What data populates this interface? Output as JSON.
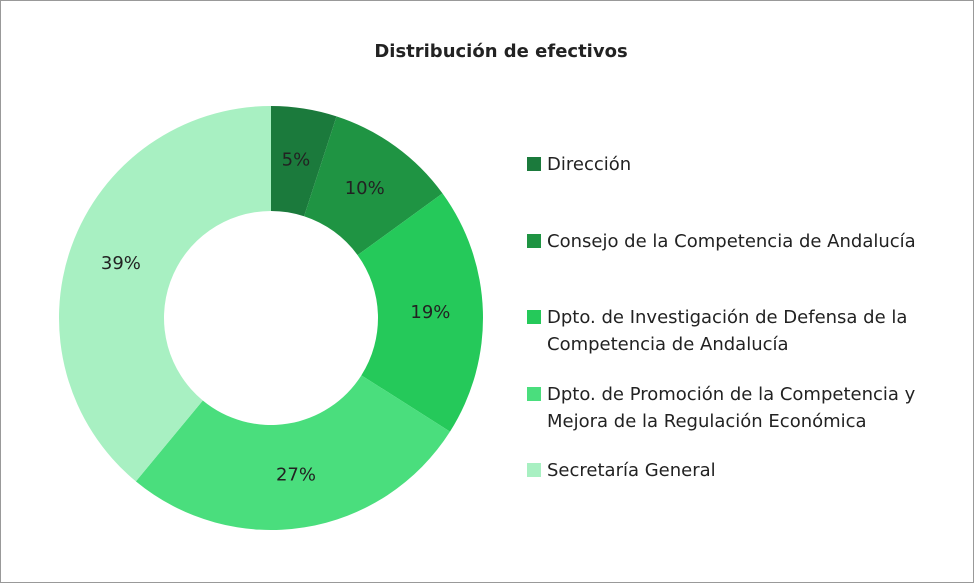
{
  "chart_data": {
    "type": "pie",
    "donut": true,
    "title": "Distribución de efectivos",
    "categories": [
      "Dirección",
      "Consejo de la Competencia de Andalucía",
      "Dpto. de Investigación de Defensa de la Competencia de Andalucía",
      "Dpto. de Promoción de la Competencia y Mejora de la Regulación Económica",
      "Secretaría General"
    ],
    "values": [
      5,
      10,
      19,
      27,
      39
    ],
    "value_labels": [
      "5%",
      "10%",
      "19%",
      "27%",
      "39%"
    ],
    "colors": [
      "#1b7a3c",
      "#1f9443",
      "#25c95a",
      "#4ade7d",
      "#a8f0c2"
    ],
    "legend": "right"
  }
}
